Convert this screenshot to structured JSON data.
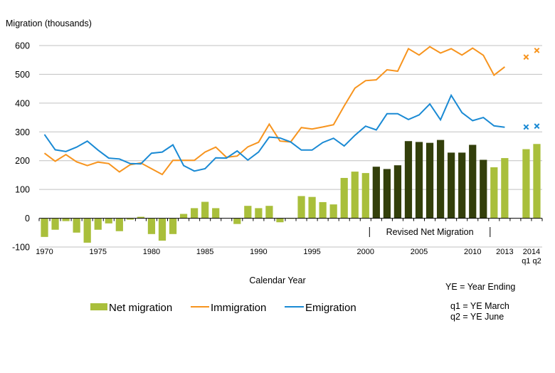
{
  "chart_data": {
    "type": "bar",
    "title": "",
    "ylabel": "Migration (thousands)",
    "xlabel": "Calendar Year",
    "ylim": [
      -100,
      600
    ],
    "yticks": [
      -100,
      0,
      100,
      200,
      300,
      400,
      500,
      600
    ],
    "grid": true,
    "categories": [
      "1970",
      "1971",
      "1972",
      "1973",
      "1974",
      "1975",
      "1976",
      "1977",
      "1978",
      "1979",
      "1980",
      "1981",
      "1982",
      "1983",
      "1984",
      "1985",
      "1986",
      "1987",
      "1988",
      "1989",
      "1990",
      "1991",
      "1992",
      "1993",
      "1994",
      "1995",
      "1996",
      "1997",
      "1998",
      "1999",
      "2000",
      "2001",
      "2002",
      "2003",
      "2004",
      "2005",
      "2006",
      "2007",
      "2008",
      "2009",
      "2010",
      "2011",
      "2012",
      "2013",
      "",
      "2014 q1",
      "2014 q2"
    ],
    "xtick_labels": [
      {
        "category": "1970",
        "label": "1970"
      },
      {
        "category": "1975",
        "label": "1975"
      },
      {
        "category": "1980",
        "label": "1980"
      },
      {
        "category": "1985",
        "label": "1985"
      },
      {
        "category": "1990",
        "label": "1990"
      },
      {
        "category": "1995",
        "label": "1995"
      },
      {
        "category": "2000",
        "label": "2000"
      },
      {
        "category": "2005",
        "label": "2005"
      },
      {
        "category": "2010",
        "label": "2010"
      },
      {
        "category": "2013",
        "label": "2013"
      }
    ],
    "xtick_2014": {
      "line1": "2014",
      "line2": "q1 q2"
    },
    "series": [
      {
        "name": "Net migration",
        "kind": "bar",
        "color": "#a9bf3b",
        "revised_color": "#333f0b",
        "revised_range": [
          "2001",
          "2011"
        ],
        "values": [
          -65,
          -40,
          -10,
          -50,
          -85,
          -40,
          -18,
          -45,
          -5,
          5,
          -55,
          -78,
          -55,
          15,
          35,
          57,
          35,
          0,
          -20,
          43,
          35,
          43,
          -14,
          -2,
          77,
          74,
          56,
          48,
          140,
          162,
          157,
          179,
          171,
          184,
          268,
          265,
          262,
          272,
          228,
          228,
          255,
          203,
          177,
          209,
          null,
          240,
          258
        ]
      },
      {
        "name": "Immigration",
        "kind": "line",
        "color": "#f7941e",
        "values": [
          226,
          198,
          221,
          196,
          183,
          195,
          190,
          161,
          186,
          192,
          172,
          152,
          201,
          201,
          201,
          230,
          247,
          212,
          216,
          248,
          264,
          327,
          268,
          265,
          315,
          310,
          317,
          325,
          390,
          452,
          478,
          481,
          516,
          511,
          589,
          567,
          596,
          574,
          589,
          567,
          591,
          566,
          497,
          526,
          null,
          null,
          null
        ],
        "markers": [
          {
            "category": "2014 q1",
            "value": 560
          },
          {
            "category": "2014 q2",
            "value": 583
          }
        ]
      },
      {
        "name": "Emigration",
        "kind": "line",
        "color": "#1a8ad4",
        "values": [
          291,
          238,
          232,
          247,
          268,
          237,
          209,
          206,
          190,
          189,
          226,
          230,
          255,
          183,
          164,
          172,
          210,
          209,
          234,
          202,
          230,
          282,
          279,
          265,
          237,
          237,
          263,
          278,
          251,
          288,
          320,
          307,
          363,
          363,
          343,
          359,
          397,
          342,
          427,
          367,
          339,
          350,
          321,
          316,
          null,
          null,
          null
        ],
        "markers": [
          {
            "category": "2014 q1",
            "value": 317
          },
          {
            "category": "2014 q2",
            "value": 320
          }
        ]
      }
    ],
    "annotation": {
      "text": "Revised Net Migration",
      "span": [
        "2001",
        "2011"
      ]
    },
    "legend": {
      "placement": "bottom-left",
      "entries": [
        "Net migration",
        "Immigration",
        "Emigration"
      ]
    }
  },
  "notes": {
    "ye": "YE = Year Ending",
    "q1": "q1 = YE March",
    "q2": "q2 = YE June"
  }
}
